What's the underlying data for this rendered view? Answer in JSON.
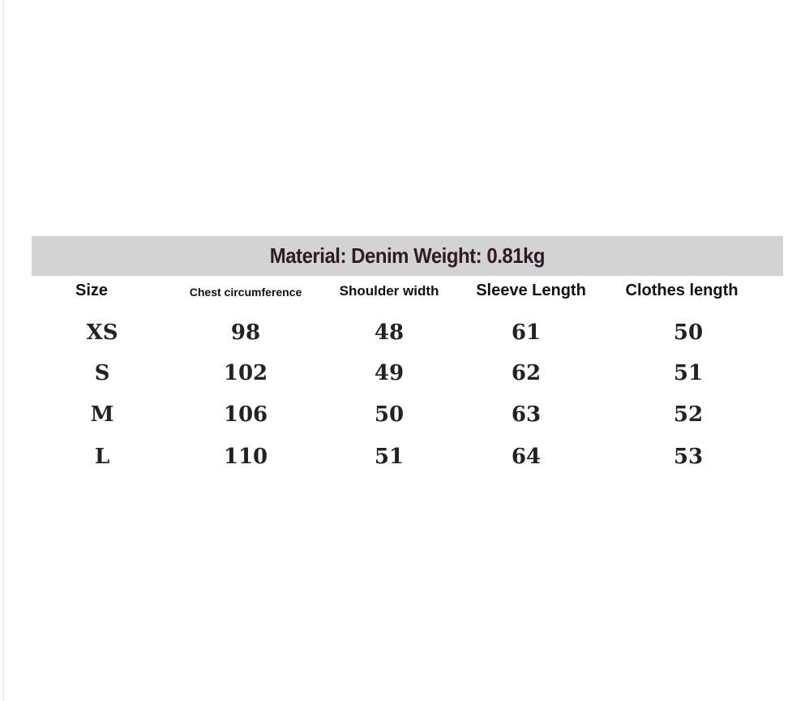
{
  "title": "Material: Denim Weight: 0.81kg",
  "headers": [
    "Size",
    "Chest circumference",
    "Shoulder width",
    "Sleeve Length",
    "Clothes length"
  ],
  "rows": [
    [
      "XS",
      "98",
      "48",
      "61",
      "50"
    ],
    [
      "S",
      "102",
      "49",
      "62",
      "51"
    ],
    [
      "M",
      "106",
      "50",
      "63",
      "52"
    ],
    [
      "L",
      "110",
      "51",
      "64",
      "53"
    ]
  ],
  "colors": {
    "band": "#d3d3d3",
    "title": "#2e1b26"
  }
}
